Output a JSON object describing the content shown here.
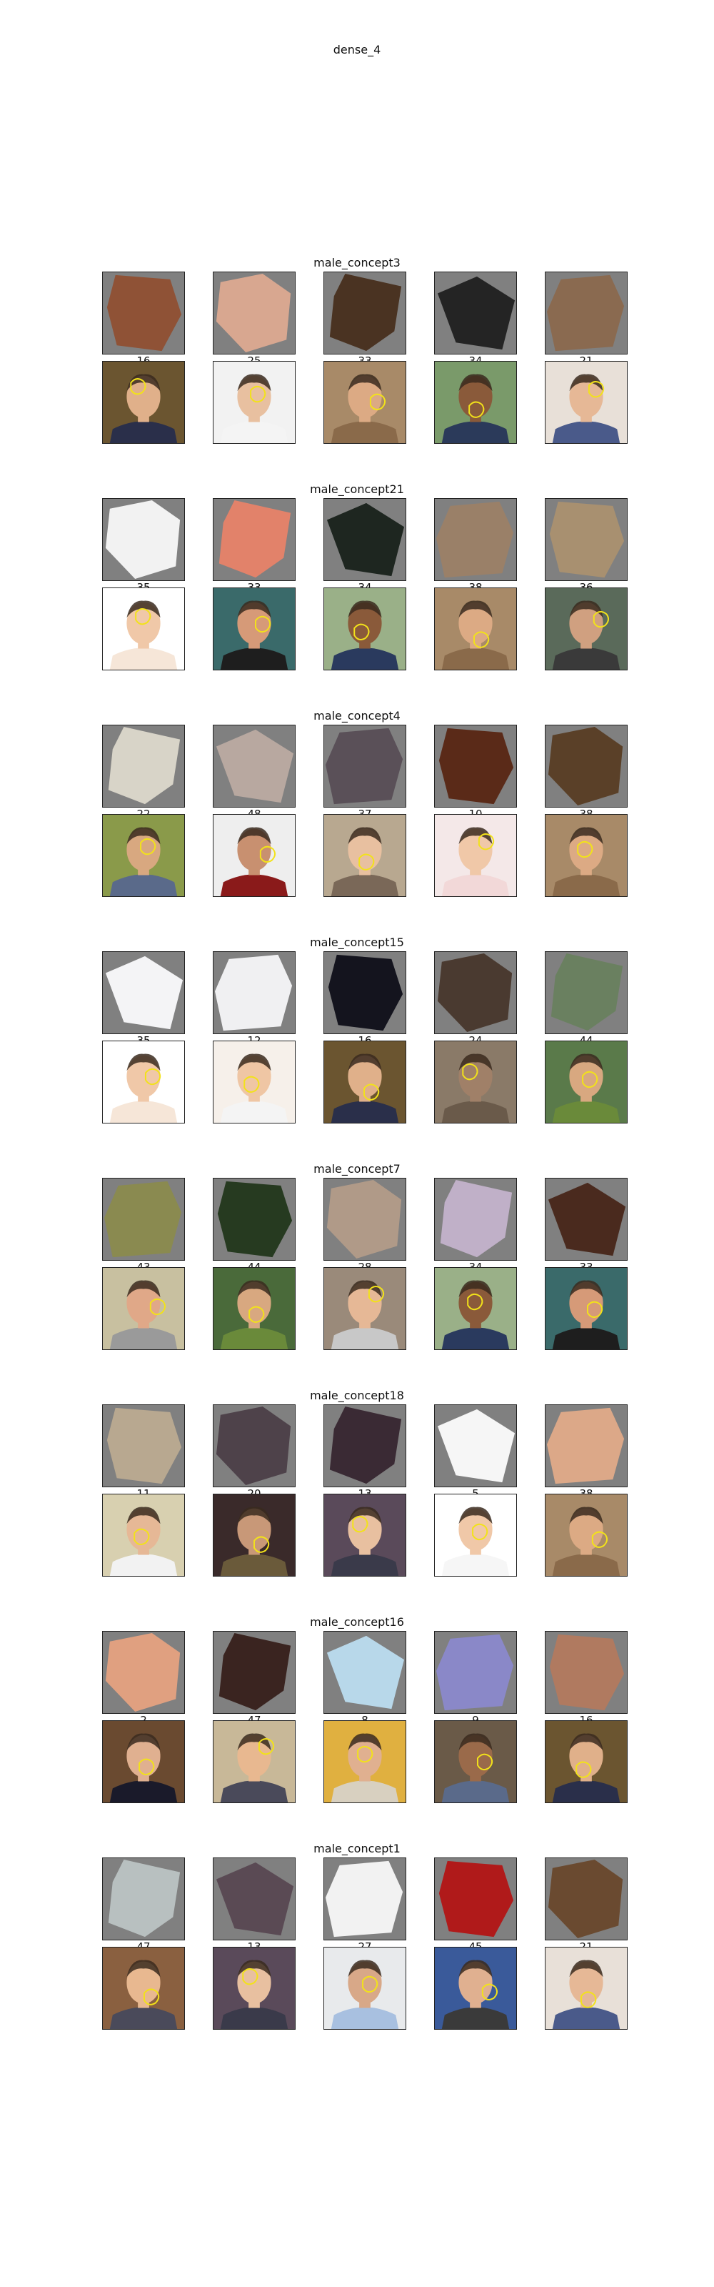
{
  "title": "dense_4",
  "sections": [
    {
      "name": "male_concept3",
      "patches": [
        {
          "label": "16",
          "fill": "#8f5236"
        },
        {
          "label": "25",
          "fill": "#d8a790"
        },
        {
          "label": "33",
          "fill": "#4a3322"
        },
        {
          "label": "34",
          "fill": "#242424"
        },
        {
          "label": "21",
          "fill": "#8a6a50"
        }
      ],
      "photos": [
        {
          "bg": "#6b5530",
          "skin": "#e0b08a",
          "shirt": "#2a2f4a"
        },
        {
          "bg": "#f2f2f2",
          "skin": "#e8c0a0",
          "shirt": "#f4f4f4"
        },
        {
          "bg": "#a88a68",
          "skin": "#dcaa84",
          "shirt": "#8a6a4a"
        },
        {
          "bg": "#7a9a6a",
          "skin": "#8a5a3a",
          "shirt": "#2b3a5a"
        },
        {
          "bg": "#e8e0d8",
          "skin": "#e6b896",
          "shirt": "#4a5a8a"
        }
      ]
    },
    {
      "name": "male_concept21",
      "patches": [
        {
          "label": "35",
          "fill": "#f2f2f2"
        },
        {
          "label": "33",
          "fill": "#e2826a"
        },
        {
          "label": "34",
          "fill": "#1e2620"
        },
        {
          "label": "38",
          "fill": "#9a8068"
        },
        {
          "label": "36",
          "fill": "#a89070"
        }
      ],
      "photos": [
        {
          "bg": "#ffffff",
          "skin": "#f0c8a8",
          "shirt": "#f6e6d8"
        },
        {
          "bg": "#3a6a6a",
          "skin": "#d69a78",
          "shirt": "#1e1e1e"
        },
        {
          "bg": "#9ab088",
          "skin": "#8a5a3a",
          "shirt": "#2a3a5e"
        },
        {
          "bg": "#a88a68",
          "skin": "#dcaa84",
          "shirt": "#8a6a4a"
        },
        {
          "bg": "#5a6a5a",
          "skin": "#d0a080",
          "shirt": "#3a3a3a"
        }
      ]
    },
    {
      "name": "male_concept4",
      "patches": [
        {
          "label": "22",
          "fill": "#d8d4c8"
        },
        {
          "label": "48",
          "fill": "#b8a8a0"
        },
        {
          "label": "37",
          "fill": "#5a5058"
        },
        {
          "label": "10",
          "fill": "#5a2a18"
        },
        {
          "label": "38",
          "fill": "#5a4028"
        }
      ],
      "photos": [
        {
          "bg": "#8a9a4a",
          "skin": "#d8a880",
          "shirt": "#5a6a8a"
        },
        {
          "bg": "#eeeeee",
          "skin": "#c89070",
          "shirt": "#8a1a1a"
        },
        {
          "bg": "#b8a890",
          "skin": "#e8c0a0",
          "shirt": "#7a6858"
        },
        {
          "bg": "#f4e8e8",
          "skin": "#f0c8a8",
          "shirt": "#f2d8d8"
        },
        {
          "bg": "#a88a68",
          "skin": "#dcaa84",
          "shirt": "#8a6a4a"
        }
      ]
    },
    {
      "name": "male_concept15",
      "patches": [
        {
          "label": "35",
          "fill": "#f4f4f6"
        },
        {
          "label": "12",
          "fill": "#f0f0f2"
        },
        {
          "label": "16",
          "fill": "#14141e"
        },
        {
          "label": "24",
          "fill": "#4a3a30"
        },
        {
          "label": "44",
          "fill": "#6a8060"
        }
      ],
      "photos": [
        {
          "bg": "#ffffff",
          "skin": "#f0c8a8",
          "shirt": "#f6e6d8"
        },
        {
          "bg": "#f6f0ea",
          "skin": "#efc6a4",
          "shirt": "#f4f4f4"
        },
        {
          "bg": "#6b5530",
          "skin": "#e0b08a",
          "shirt": "#2a2f4a"
        },
        {
          "bg": "#8a7a68",
          "skin": "#a08068",
          "shirt": "#6a5a4a"
        },
        {
          "bg": "#5a7a4a",
          "skin": "#d8a880",
          "shirt": "#6a8a3a"
        }
      ]
    },
    {
      "name": "male_concept7",
      "patches": [
        {
          "label": "43",
          "fill": "#8a8a50"
        },
        {
          "label": "44",
          "fill": "#263a20"
        },
        {
          "label": "28",
          "fill": "#b09a88"
        },
        {
          "label": "34",
          "fill": "#c0b0c8"
        },
        {
          "label": "33",
          "fill": "#4a2a1e"
        }
      ],
      "photos": [
        {
          "bg": "#c8c0a0",
          "skin": "#e0a888",
          "shirt": "#9a9a9a"
        },
        {
          "bg": "#4a6a3a",
          "skin": "#d8a880",
          "shirt": "#6a8a3a"
        },
        {
          "bg": "#9a8a7a",
          "skin": "#e6b896",
          "shirt": "#c8c8c8"
        },
        {
          "bg": "#9ab088",
          "skin": "#8a5a3a",
          "shirt": "#2a3a5e"
        },
        {
          "bg": "#3a6a6a",
          "skin": "#d69a78",
          "shirt": "#1e1e1e"
        }
      ]
    },
    {
      "name": "male_concept18",
      "patches": [
        {
          "label": "11",
          "fill": "#b8a890"
        },
        {
          "label": "20",
          "fill": "#4e424a"
        },
        {
          "label": "13",
          "fill": "#3a2a34"
        },
        {
          "label": "5",
          "fill": "#f6f6f6"
        },
        {
          "label": "38",
          "fill": "#dca888"
        }
      ],
      "photos": [
        {
          "bg": "#d8d0b0",
          "skin": "#e6b896",
          "shirt": "#f2f2f2"
        },
        {
          "bg": "#3a2a2a",
          "skin": "#c89878",
          "shirt": "#6a5a3a"
        },
        {
          "bg": "#5a4a5a",
          "skin": "#e8c0a0",
          "shirt": "#3a3a4a"
        },
        {
          "bg": "#ffffff",
          "skin": "#f0c8a8",
          "shirt": "#f6f6f6"
        },
        {
          "bg": "#a88a68",
          "skin": "#dcaa84",
          "shirt": "#8a6a4a"
        }
      ]
    },
    {
      "name": "male_concept16",
      "patches": [
        {
          "label": "2",
          "fill": "#e0a080"
        },
        {
          "label": "47",
          "fill": "#3a2420"
        },
        {
          "label": "8",
          "fill": "#b8d8ea"
        },
        {
          "label": "9",
          "fill": "#8a88c8"
        },
        {
          "label": "16",
          "fill": "#b07a60"
        }
      ],
      "photos": [
        {
          "bg": "#6a4a30",
          "skin": "#e0b090",
          "shirt": "#1a1a2a"
        },
        {
          "bg": "#c8b898",
          "skin": "#e8b890",
          "shirt": "#4a4a5a"
        },
        {
          "bg": "#e0b040",
          "skin": "#e0b090",
          "shirt": "#d8d0c0"
        },
        {
          "bg": "#6a5a48",
          "skin": "#9a6a4a",
          "shirt": "#5a6a8a"
        },
        {
          "bg": "#6b5530",
          "skin": "#e0b08a",
          "shirt": "#2a2f4a"
        }
      ]
    },
    {
      "name": "male_concept1",
      "patches": [
        {
          "label": "47",
          "fill": "#b8c0c0"
        },
        {
          "label": "13",
          "fill": "#5a4a54"
        },
        {
          "label": "27",
          "fill": "#f2f2f2"
        },
        {
          "label": "45",
          "fill": "#b01a1a"
        },
        {
          "label": "21",
          "fill": "#6a4a30"
        }
      ],
      "photos": [
        {
          "bg": "#8a6040",
          "skin": "#e8b890",
          "shirt": "#4a4a5a"
        },
        {
          "bg": "#5a4a5a",
          "skin": "#e8c0a0",
          "shirt": "#3a3a4a"
        },
        {
          "bg": "#e8eaec",
          "skin": "#d8a888",
          "shirt": "#a8c0e0"
        },
        {
          "bg": "#3a5a9a",
          "skin": "#e0b090",
          "shirt": "#3a3a3a"
        },
        {
          "bg": "#e8e0d8",
          "skin": "#e6b896",
          "shirt": "#4a5a8a"
        }
      ]
    }
  ]
}
